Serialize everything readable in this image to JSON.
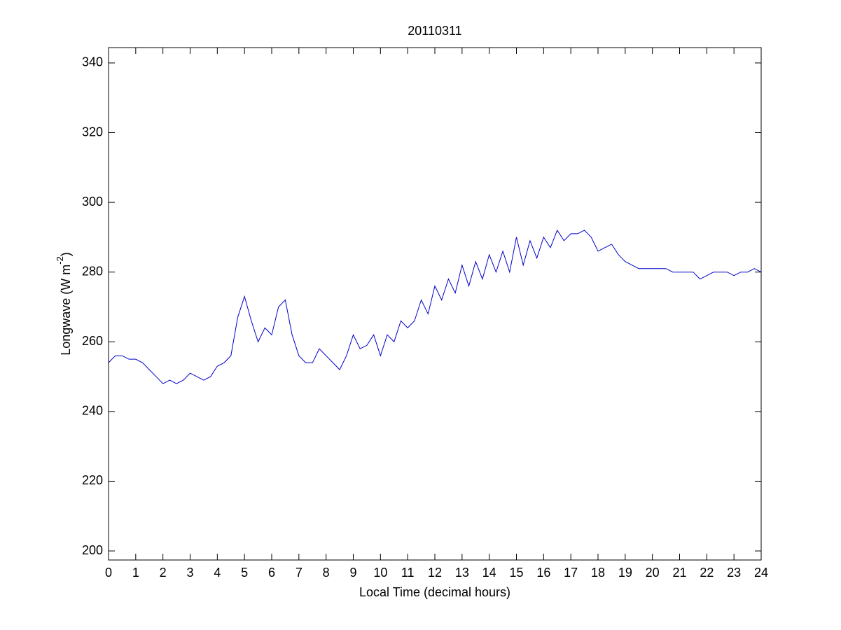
{
  "chart_data": {
    "type": "line",
    "title": "20110311",
    "x_label": "Local Time (decimal hours)",
    "y_label": "Longwave (W m",
    "y_label_sup": "-2",
    "y_label_end": ")",
    "xlim": [
      0,
      24
    ],
    "xticks": [
      0,
      1,
      2,
      3,
      4,
      5,
      6,
      7,
      8,
      9,
      10,
      11,
      12,
      13,
      14,
      15,
      16,
      17,
      18,
      19,
      20,
      21,
      22,
      23,
      24
    ],
    "ylim": [
      197.4,
      344.4
    ],
    "yticks": [
      200,
      220,
      240,
      260,
      280,
      300,
      320,
      340
    ],
    "grid": false,
    "series": [
      {
        "name": "Longwave",
        "color": "#0000cc",
        "x": [
          0,
          0.25,
          0.5,
          0.75,
          1,
          1.25,
          1.5,
          1.75,
          2,
          2.25,
          2.5,
          2.75,
          3,
          3.25,
          3.5,
          3.75,
          4,
          4.25,
          4.5,
          4.75,
          5,
          5.25,
          5.5,
          5.75,
          6,
          6.25,
          6.5,
          6.75,
          7,
          7.25,
          7.5,
          7.75,
          8,
          8.25,
          8.5,
          8.75,
          9,
          9.25,
          9.5,
          9.75,
          10,
          10.25,
          10.5,
          10.75,
          11,
          11.25,
          11.5,
          11.75,
          12,
          12.25,
          12.5,
          12.75,
          13,
          13.25,
          13.5,
          13.75,
          14,
          14.25,
          14.5,
          14.75,
          15,
          15.25,
          15.5,
          15.75,
          16,
          16.25,
          16.5,
          16.75,
          17,
          17.25,
          17.5,
          17.75,
          18,
          18.25,
          18.5,
          18.75,
          19,
          19.25,
          19.5,
          19.75,
          20,
          20.25,
          20.5,
          20.75,
          21,
          21.25,
          21.5,
          21.75,
          22,
          22.25,
          22.5,
          22.75,
          23,
          23.25,
          23.5,
          23.75,
          24
        ],
        "values": [
          254,
          256,
          256,
          255,
          255,
          254,
          252,
          250,
          248,
          249,
          248,
          249,
          251,
          250,
          249,
          250,
          253,
          254,
          256,
          267,
          273,
          266,
          260,
          264,
          262,
          270,
          272,
          262,
          256,
          254,
          254,
          258,
          256,
          254,
          252,
          256,
          262,
          258,
          259,
          262,
          256,
          262,
          260,
          266,
          264,
          266,
          272,
          268,
          276,
          272,
          278,
          274,
          282,
          276,
          283,
          278,
          285,
          280,
          286,
          280,
          290,
          282,
          289,
          284,
          290,
          287,
          292,
          289,
          291,
          291,
          292,
          290,
          286,
          287,
          288,
          285,
          283,
          282,
          281,
          281,
          281,
          281,
          281,
          280,
          280,
          280,
          280,
          278,
          279,
          280,
          280,
          280,
          279,
          280,
          280,
          281,
          280
        ]
      }
    ]
  }
}
